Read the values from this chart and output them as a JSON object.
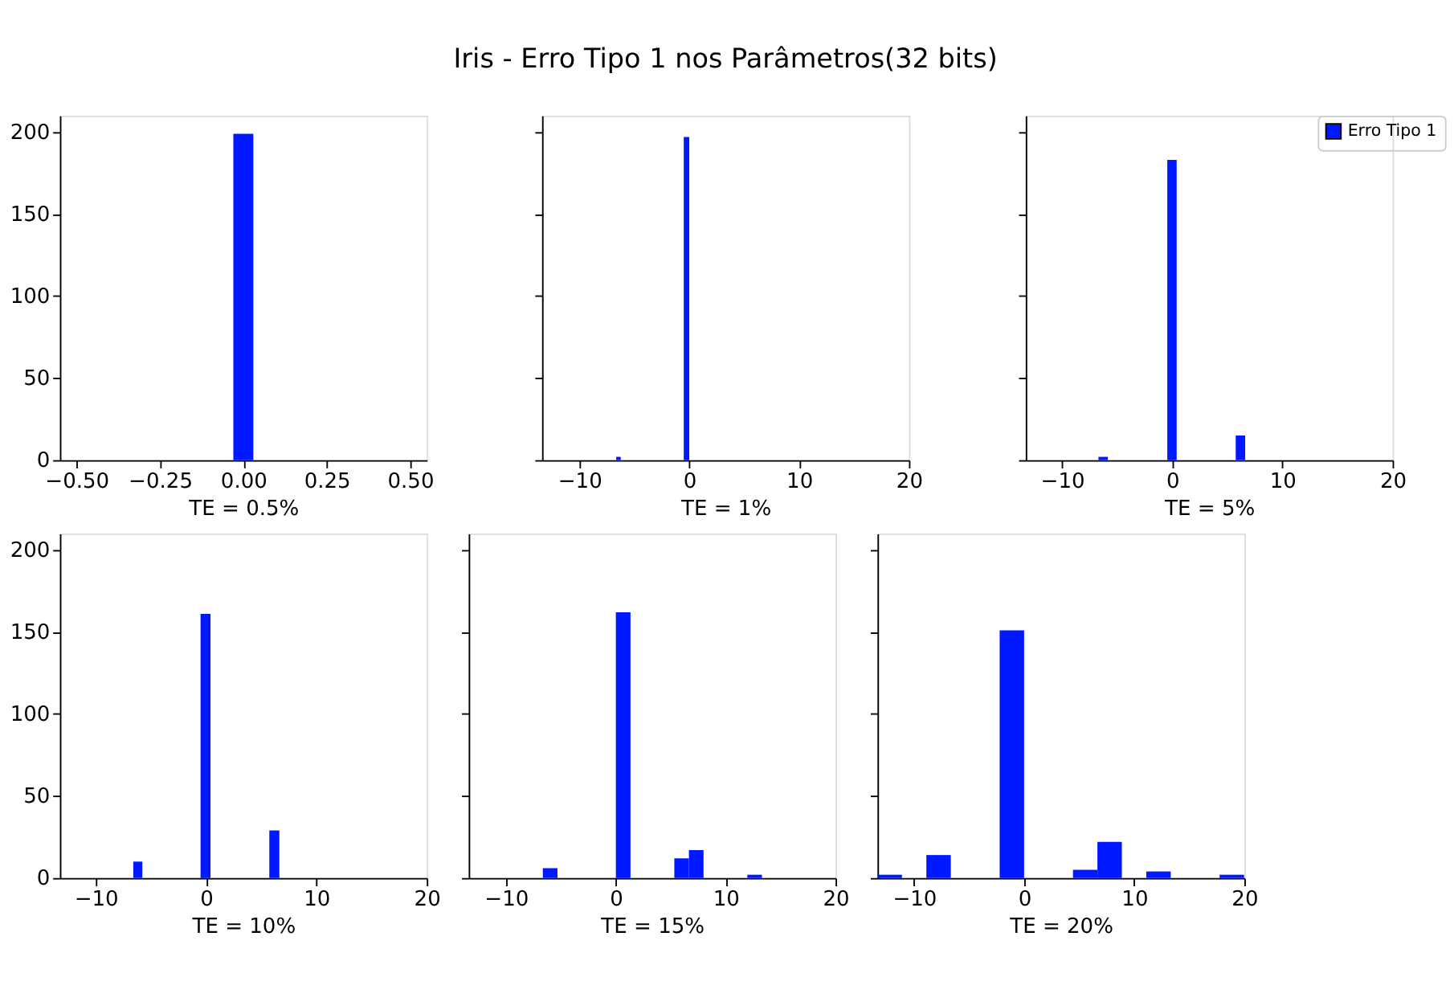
{
  "chart_data": [
    {
      "type": "histogram",
      "xlabel": "TE = 0.5%",
      "bins": [
        -0.03,
        0.03
      ],
      "series": [
        {
          "color": "#0018ff",
          "values": [
            199
          ]
        }
      ],
      "xlim": [
        -0.55,
        0.55
      ],
      "xticks": [
        {
          "value": -0.5,
          "label": "−0.50"
        },
        {
          "value": -0.25,
          "label": "−0.25"
        },
        {
          "value": 0,
          "label": "0.00"
        },
        {
          "value": 0.25,
          "label": "0.25"
        },
        {
          "value": 0.5,
          "label": "0.50"
        }
      ],
      "ylim": [
        0,
        210
      ],
      "yticks": [
        0,
        50,
        100,
        150,
        200
      ],
      "grid": false,
      "legend": false
    },
    {
      "type": "histogram",
      "title": "Iris - Erro Tipo 1 nos Parâmetros(32 bits)",
      "xlabel": "TE = 1%",
      "bins": [
        -6.65,
        -6.24,
        -0.5,
        0
      ],
      "series": [
        {
          "color": "#0018ff",
          "values": [
            2,
            0,
            197
          ]
        }
      ],
      "xlim": [
        -13.4,
        20
      ],
      "xticks": [
        {
          "value": -10,
          "label": "−10"
        },
        0,
        10,
        20
      ],
      "ylim": [
        0,
        210
      ],
      "yticks": [
        0,
        50,
        100,
        150,
        200
      ],
      "tick_labels": "x",
      "grid": false,
      "legend": false
    },
    {
      "type": "histogram",
      "xlabel": "TE = 5%",
      "bins": [
        -6.7,
        -5.85,
        -0.45,
        0.4,
        5.76,
        6.62
      ],
      "series": [
        {
          "name": "Erro Tipo 1",
          "color": "#0018ff",
          "values": [
            2,
            0,
            183,
            0,
            15
          ]
        }
      ],
      "xlim": [
        -13.3,
        20
      ],
      "xticks": [
        {
          "value": -10,
          "label": "−10"
        },
        0,
        10,
        20
      ],
      "ylim": [
        0,
        210
      ],
      "yticks": [
        0,
        50,
        100,
        150,
        200
      ],
      "tick_labels": "x",
      "grid": false,
      "legend": "right"
    },
    {
      "type": "histogram",
      "xlabel": "TE = 10%",
      "bins": [
        -6.6,
        -5.78,
        -0.5,
        0.4,
        5.73,
        6.64
      ],
      "series": [
        {
          "color": "#0018ff",
          "values": [
            10,
            0,
            161,
            0,
            29
          ]
        }
      ],
      "xlim": [
        -13.25,
        20
      ],
      "xticks": [
        {
          "value": -10,
          "label": "−10"
        },
        0,
        10,
        20
      ],
      "ylim": [
        0,
        210
      ],
      "yticks": [
        0,
        50,
        100,
        150,
        200
      ],
      "grid": false,
      "legend": false
    },
    {
      "type": "histogram",
      "xlabel": "TE = 15%",
      "bins": [
        -6.65,
        -5.32,
        -3.99,
        -2.66,
        -1.33,
        0,
        1.33,
        2.66,
        3.99,
        5.32,
        6.65,
        7.98,
        9.31,
        10.64,
        11.97,
        13.3
      ],
      "series": [
        {
          "color": "#0018ff",
          "values": [
            6,
            0,
            0,
            0,
            0,
            162,
            0,
            0,
            0,
            12,
            17,
            0,
            0,
            0,
            2
          ]
        }
      ],
      "xlim": [
        -13.4,
        20
      ],
      "xticks": [
        {
          "value": -10,
          "label": "−10"
        },
        0,
        10,
        20
      ],
      "ylim": [
        0,
        210
      ],
      "yticks": [
        0,
        50,
        100,
        150,
        200
      ],
      "tick_labels": "x",
      "grid": false,
      "legend": false
    },
    {
      "type": "histogram",
      "xlabel": "TE = 20%",
      "bins": [
        -13.33,
        -11.11,
        -8.89,
        -6.67,
        -4.45,
        -2.23,
        -0.01,
        2.21,
        4.43,
        6.65,
        8.87,
        11.09,
        13.31,
        15.53,
        17.75,
        19.97
      ],
      "series": [
        {
          "color": "#0018ff",
          "values": [
            2,
            0,
            14,
            0,
            0,
            151,
            0,
            0,
            5,
            22,
            0,
            4,
            0,
            0,
            2
          ]
        }
      ],
      "xlim": [
        -13.33,
        20
      ],
      "xticks": [
        {
          "value": -10,
          "label": "−10"
        },
        0,
        10,
        20
      ],
      "ylim": [
        0,
        210
      ],
      "yticks": [
        0,
        50,
        100,
        150,
        200
      ],
      "tick_labels": "x",
      "grid": false,
      "legend": false
    }
  ]
}
